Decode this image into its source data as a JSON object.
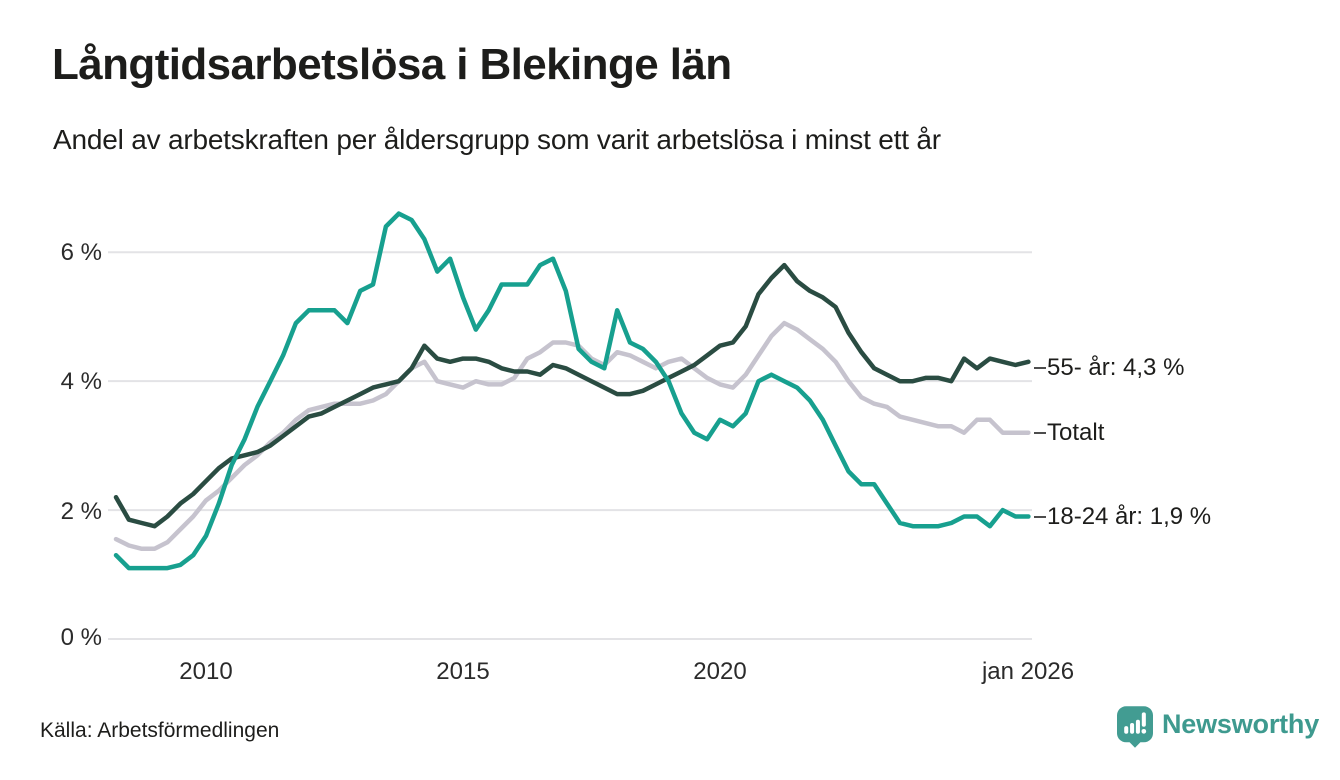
{
  "header": {
    "title": "Långtidsarbetslösa i Blekinge län",
    "subtitle": "Andel av arbetskraften per åldersgrupp som varit arbetslösa i minst ett år"
  },
  "footer": {
    "source": "Källa: Arbetsförmedlingen",
    "brand": "Newsworthy"
  },
  "colors": {
    "background": "#ffffff",
    "text": "#1d1d1b",
    "grid": "#E3E3E6",
    "end_tick": "#4d4d4d",
    "brand_teal": "#3E9A8F",
    "series_18_24": "#17A08F",
    "series_55": "#2A4C42",
    "series_total": "#C6C3CE"
  },
  "chart_data": {
    "type": "line",
    "title": "Långtidsarbetslösa i Blekinge län",
    "subtitle": "Andel av arbetskraften per åldersgrupp som varit arbetslösa i minst ett år",
    "grid": true,
    "legend_position": "right-end-labels",
    "x_axis": {
      "tick_labels": [
        "2010",
        "2015",
        "2020",
        "jan 2026"
      ],
      "tick_values": [
        2010,
        2015,
        2020,
        2026
      ],
      "range": [
        2008.25,
        2026
      ]
    },
    "y_axis": {
      "unit": "%",
      "tick_labels": [
        "6 %",
        "4 %",
        "2 %",
        "0 %"
      ],
      "tick_values": [
        6,
        4,
        2,
        0
      ],
      "range": [
        0,
        6.9
      ]
    },
    "x": [
      2008.25,
      2008.5,
      2008.75,
      2009,
      2009.25,
      2009.5,
      2009.75,
      2010,
      2010.25,
      2010.5,
      2010.75,
      2011,
      2011.25,
      2011.5,
      2011.75,
      2012,
      2012.25,
      2012.5,
      2012.75,
      2013,
      2013.25,
      2013.5,
      2013.75,
      2014,
      2014.25,
      2014.5,
      2014.75,
      2015,
      2015.25,
      2015.5,
      2015.75,
      2016,
      2016.25,
      2016.5,
      2016.75,
      2017,
      2017.25,
      2017.5,
      2017.75,
      2018,
      2018.25,
      2018.5,
      2018.75,
      2019,
      2019.25,
      2019.5,
      2019.75,
      2020,
      2020.25,
      2020.5,
      2020.75,
      2021,
      2021.25,
      2021.5,
      2021.75,
      2022,
      2022.25,
      2022.5,
      2022.75,
      2023,
      2023.25,
      2023.5,
      2023.75,
      2024,
      2024.25,
      2024.5,
      2024.75,
      2025,
      2025.25,
      2025.5,
      2025.75,
      2026
    ],
    "series": [
      {
        "name": "55- år",
        "end_label": "55- år: 4,3 %",
        "latest_value": 4.3,
        "color": "#2A4C42",
        "values": [
          2.2,
          1.85,
          1.8,
          1.75,
          1.9,
          2.1,
          2.25,
          2.45,
          2.65,
          2.8,
          2.85,
          2.9,
          3.0,
          3.15,
          3.3,
          3.45,
          3.5,
          3.6,
          3.7,
          3.8,
          3.9,
          3.95,
          4.0,
          4.2,
          4.55,
          4.35,
          4.3,
          4.35,
          4.35,
          4.3,
          4.2,
          4.15,
          4.15,
          4.1,
          4.25,
          4.2,
          4.1,
          4.0,
          3.9,
          3.8,
          3.8,
          3.85,
          3.95,
          4.05,
          4.15,
          4.25,
          4.4,
          4.55,
          4.6,
          4.85,
          5.35,
          5.6,
          5.8,
          5.55,
          5.4,
          5.3,
          5.15,
          4.75,
          4.45,
          4.2,
          4.1,
          4.0,
          4.0,
          4.05,
          4.05,
          4.0,
          4.35,
          4.2,
          4.35,
          4.3,
          4.25,
          4.3
        ]
      },
      {
        "name": "Totalt",
        "end_label": "Totalt",
        "latest_value": 3.2,
        "color": "#C6C3CE",
        "values": [
          1.55,
          1.45,
          1.4,
          1.4,
          1.5,
          1.7,
          1.9,
          2.15,
          2.3,
          2.5,
          2.7,
          2.85,
          3.05,
          3.2,
          3.4,
          3.55,
          3.6,
          3.65,
          3.65,
          3.65,
          3.7,
          3.8,
          4.0,
          4.2,
          4.3,
          4.0,
          3.95,
          3.9,
          4.0,
          3.95,
          3.95,
          4.05,
          4.35,
          4.45,
          4.6,
          4.6,
          4.55,
          4.35,
          4.25,
          4.45,
          4.4,
          4.3,
          4.2,
          4.3,
          4.35,
          4.2,
          4.05,
          3.95,
          3.9,
          4.1,
          4.4,
          4.7,
          4.9,
          4.8,
          4.65,
          4.5,
          4.3,
          4.0,
          3.75,
          3.65,
          3.6,
          3.45,
          3.4,
          3.35,
          3.3,
          3.3,
          3.2,
          3.4,
          3.4,
          3.2,
          3.2,
          3.2
        ]
      },
      {
        "name": "18-24 år",
        "end_label": "18-24 år: 1,9 %",
        "latest_value": 1.9,
        "color": "#17A08F",
        "values": [
          1.3,
          1.1,
          1.1,
          1.1,
          1.1,
          1.15,
          1.3,
          1.6,
          2.1,
          2.7,
          3.1,
          3.6,
          4.0,
          4.4,
          4.9,
          5.1,
          5.1,
          5.1,
          4.9,
          5.4,
          5.5,
          6.4,
          6.6,
          6.5,
          6.2,
          5.7,
          5.9,
          5.3,
          4.8,
          5.1,
          5.5,
          5.5,
          5.5,
          5.8,
          5.9,
          5.4,
          4.5,
          4.3,
          4.2,
          5.1,
          4.6,
          4.5,
          4.3,
          4.0,
          3.5,
          3.2,
          3.1,
          3.4,
          3.3,
          3.5,
          4.0,
          4.1,
          4.0,
          3.9,
          3.7,
          3.4,
          3.0,
          2.6,
          2.4,
          2.4,
          2.1,
          1.8,
          1.75,
          1.75,
          1.75,
          1.8,
          1.9,
          1.9,
          1.75,
          2.0,
          1.9,
          1.9
        ]
      }
    ]
  }
}
